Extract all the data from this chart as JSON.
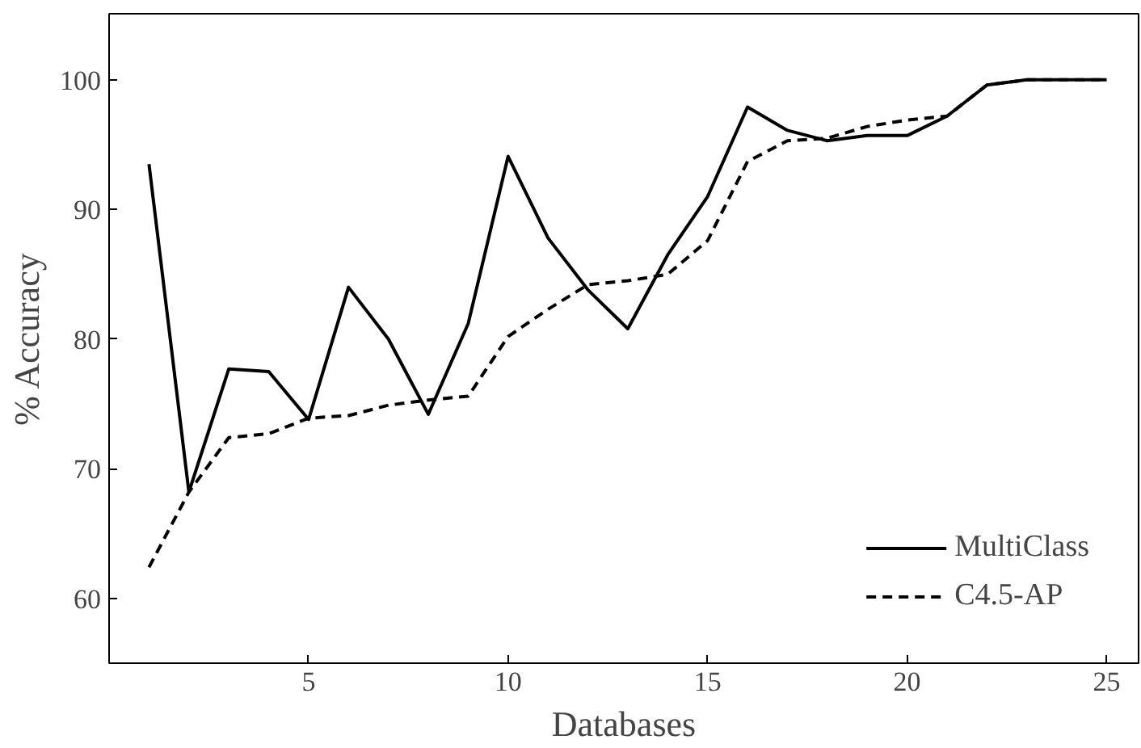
{
  "chart_data": {
    "type": "line",
    "xlabel": "Databases",
    "ylabel": "% Accuracy",
    "x": [
      1,
      2,
      3,
      4,
      5,
      6,
      7,
      8,
      9,
      10,
      11,
      12,
      13,
      14,
      15,
      16,
      17,
      18,
      19,
      20,
      21,
      22,
      23,
      24,
      25
    ],
    "series": [
      {
        "name": "MultiClass",
        "color": "#000000",
        "line_style": "solid",
        "values": [
          93.5,
          68.2,
          77.7,
          77.5,
          73.8,
          84,
          80,
          74.2,
          81.2,
          94.1,
          87.8,
          83.8,
          80.8,
          86.5,
          91,
          97.9,
          96.1,
          95.3,
          95.7,
          95.7,
          97.2,
          99.6,
          100,
          100,
          100
        ]
      },
      {
        "name": "C4.5-AP",
        "color": "#000000",
        "line_style": "dashed",
        "values": [
          62.4,
          68.2,
          72.4,
          72.7,
          73.9,
          74.1,
          74.9,
          75.3,
          75.6,
          80.2,
          82.3,
          84.2,
          84.5,
          85,
          87.6,
          93.7,
          95.3,
          95.5,
          96.4,
          96.9,
          97.2,
          99.6,
          100,
          100,
          100
        ]
      }
    ],
    "xlim": [
      0,
      25.8
    ],
    "ylim": [
      55,
      105.1
    ],
    "xticks": [
      5,
      10,
      15,
      20,
      25
    ],
    "yticks": [
      60,
      70,
      80,
      90,
      100
    ],
    "grid": false,
    "legend": "bottom right",
    "marker": "none"
  }
}
